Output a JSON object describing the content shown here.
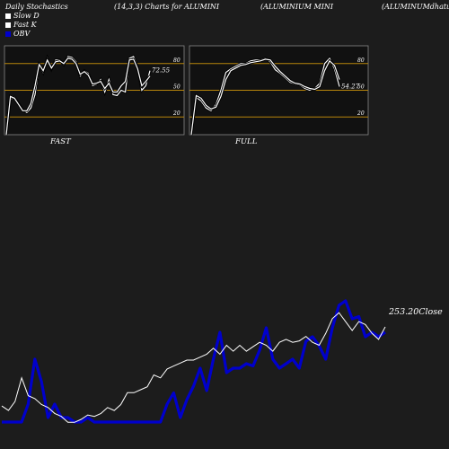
{
  "header": {
    "title": "Daily Stochastics",
    "params": "(14,3,3) Charts for ALUMINI",
    "name": "(ALUMINIUM MINI",
    "name2": "(ALUMINUMdhatu"
  },
  "legend": [
    {
      "label": "Slow  D",
      "color": "#ffffff"
    },
    {
      "label": "Fast  K",
      "color": "#ffffff"
    },
    {
      "label": "OBV",
      "color": "#0000cc"
    }
  ],
  "colors": {
    "background": "#1c1c1c",
    "panel": "#111111",
    "level_line": "#b8860b",
    "stoch_line": "#ffffff",
    "obv_line": "#0000cc",
    "price_line": "#ffffff"
  },
  "chart_data": [
    {
      "type": "line",
      "panel": "FAST",
      "label": "FAST",
      "ylim": [
        0,
        100
      ],
      "levels": [
        80,
        50,
        20
      ],
      "tick_labels": [
        "80",
        "50",
        "20"
      ],
      "last_value_label": "72.55",
      "series": [
        {
          "values": [
            0,
            40,
            42,
            35,
            28,
            25,
            30,
            45,
            78,
            70,
            86,
            74,
            84,
            84,
            79,
            88,
            87,
            82,
            66,
            72,
            69,
            55,
            57,
            62,
            48,
            62,
            45,
            44,
            50,
            48,
            86,
            88,
            76,
            50,
            55,
            72
          ]
        },
        {
          "values": [
            0,
            43,
            41,
            34,
            27,
            27,
            35,
            55,
            79,
            72,
            84,
            75,
            82,
            83,
            80,
            86,
            85,
            80,
            68,
            71,
            67,
            57,
            58,
            60,
            52,
            58,
            48,
            48,
            55,
            60,
            84,
            85,
            74,
            55,
            60,
            66
          ]
        }
      ]
    },
    {
      "type": "line",
      "panel": "FULL",
      "label": "FULL",
      "ylim": [
        0,
        100
      ],
      "levels": [
        80,
        50,
        20
      ],
      "tick_labels": [
        "80",
        "50",
        "20"
      ],
      "last_value_label": "54.27",
      "series": [
        {
          "values": [
            0,
            42,
            38,
            30,
            27,
            34,
            50,
            70,
            74,
            77,
            80,
            80,
            83,
            84,
            84,
            86,
            82,
            73,
            69,
            64,
            59,
            57,
            56,
            52,
            50,
            52,
            58,
            80,
            86,
            74,
            54
          ]
        },
        {
          "values": [
            0,
            44,
            41,
            33,
            29,
            31,
            43,
            62,
            72,
            75,
            78,
            79,
            81,
            82,
            83,
            85,
            84,
            77,
            71,
            66,
            61,
            58,
            57,
            54,
            52,
            51,
            54,
            72,
            83,
            78,
            62
          ]
        }
      ]
    },
    {
      "type": "line",
      "panel": "price-obv",
      "last_value_label": "253.20",
      "last_value_suffix": "Close",
      "series": [
        {
          "name": "Close",
          "values": [
            226.5,
            225,
            228,
            236,
            230,
            229,
            227,
            226,
            224,
            223,
            221,
            221,
            222,
            223.5,
            223,
            224,
            226,
            225,
            227,
            231,
            231,
            232,
            233,
            237,
            236,
            239,
            240,
            241,
            242,
            242,
            243,
            244,
            246,
            244,
            247,
            245,
            247,
            245,
            246.5,
            248,
            247,
            245,
            248,
            249,
            248,
            248.5,
            250,
            248,
            247,
            251,
            256,
            258,
            255,
            252,
            255,
            254,
            251,
            249,
            253.2
          ]
        },
        {
          "name": "OBV",
          "values": [
            20,
            20,
            20,
            20,
            28,
            48,
            38,
            22,
            28,
            22,
            22,
            20,
            20,
            22,
            20,
            20,
            20,
            20,
            20,
            20,
            20,
            20,
            20,
            20,
            20,
            28,
            33,
            22,
            30,
            36,
            44,
            34,
            48,
            60,
            42,
            44,
            44,
            46,
            45,
            52,
            62,
            48,
            44,
            46,
            48,
            44,
            56,
            58,
            54,
            48,
            62,
            72,
            74,
            66,
            67,
            58,
            60,
            58,
            60
          ]
        }
      ]
    }
  ]
}
